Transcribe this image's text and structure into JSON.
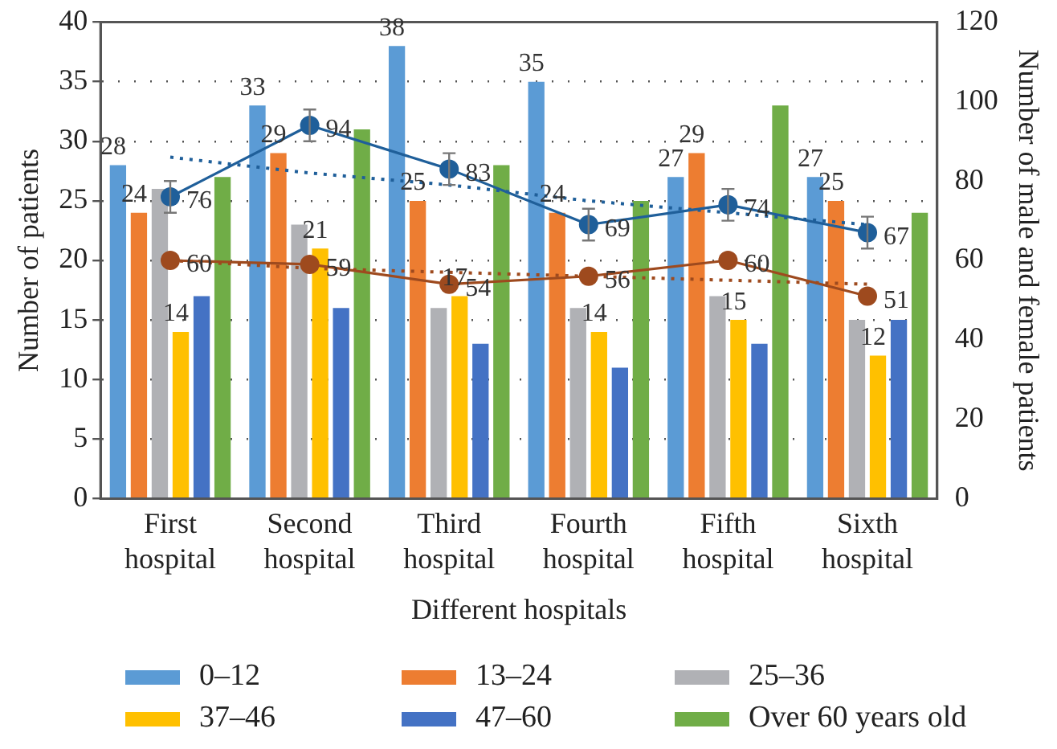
{
  "chart_data": {
    "type": "bar",
    "xlabel": "Different hospitals",
    "ylabel": "Number of patients",
    "y2label": "Number of male and female patients",
    "categories": [
      "First hospital",
      "Second hospital",
      "Third hospital",
      "Fourth hospital",
      "Fifth hospital",
      "Sixth hospital"
    ],
    "series": [
      {
        "name": "0–12",
        "color": "#5b9bd5",
        "values": [
          28,
          33,
          38,
          35,
          27,
          27
        ],
        "value_labels": [
          "28",
          "33",
          "38",
          "35",
          "27",
          "27"
        ]
      },
      {
        "name": "13–24",
        "color": "#ed7d31",
        "values": [
          24,
          29,
          25,
          24,
          29,
          25
        ],
        "value_labels": [
          "24",
          "29",
          "25",
          "24",
          "29",
          "25"
        ]
      },
      {
        "name": "25–36",
        "color": "#b0b1b5",
        "values": [
          26,
          23,
          16,
          16,
          17,
          15
        ]
      },
      {
        "name": "37–46",
        "color": "#ffc000",
        "values": [
          14,
          21,
          17,
          14,
          15,
          12
        ],
        "value_labels": [
          "14",
          "21",
          "17",
          "14",
          "15",
          "12"
        ]
      },
      {
        "name": "47–60",
        "color": "#4472c4",
        "values": [
          17,
          16,
          13,
          11,
          13,
          15
        ]
      },
      {
        "name": "Over 60 years old",
        "color": "#70ad47",
        "values": [
          27,
          31,
          28,
          25,
          33,
          24
        ]
      },
      {
        "type": "line",
        "axis": "y2",
        "color": "#1f5f9a",
        "marker": "circle",
        "line_style": "solid",
        "values": [
          76,
          94,
          83,
          69,
          74,
          67
        ],
        "value_labels": [
          "76",
          "94",
          "83",
          "69",
          "74",
          "67"
        ],
        "errors": [
          4,
          4,
          4,
          4,
          4,
          4
        ]
      },
      {
        "type": "line",
        "axis": "y2",
        "color": "#9e4a1e",
        "marker": "circle",
        "line_style": "solid",
        "values": [
          60,
          59,
          54,
          56,
          60,
          51
        ],
        "value_labels": [
          "60",
          "59",
          "54",
          "56",
          "60",
          "51"
        ]
      },
      {
        "type": "line",
        "axis": "y2",
        "color": "#1f5f9a",
        "marker": "none",
        "line_style": "dotted",
        "values": [
          86,
          82,
          79,
          75,
          72,
          69
        ]
      },
      {
        "type": "line",
        "axis": "y2",
        "color": "#9e4a1e",
        "marker": "none",
        "line_style": "dotted",
        "values": [
          60,
          58,
          57,
          56,
          55,
          54
        ]
      }
    ],
    "ylim": [
      0,
      40
    ],
    "yticks": [
      0,
      5,
      10,
      15,
      20,
      25,
      30,
      35,
      40
    ],
    "y2lim": [
      0,
      120
    ],
    "y2ticks": [
      0,
      20,
      40,
      60,
      80,
      100,
      120
    ],
    "grid": "y",
    "legend": "bottom"
  }
}
